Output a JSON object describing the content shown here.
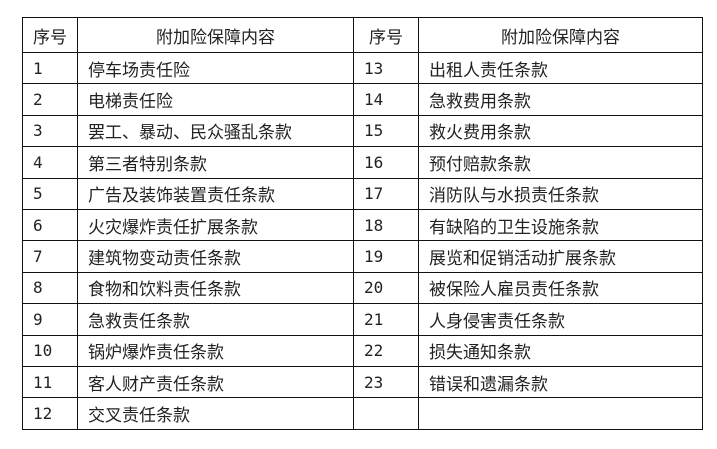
{
  "headers": {
    "no": "序号",
    "content": "附加险保障内容"
  },
  "left": [
    {
      "no": "1",
      "content": "停车场责任险"
    },
    {
      "no": "2",
      "content": "电梯责任险"
    },
    {
      "no": "3",
      "content": "罢工、暴动、民众骚乱条款"
    },
    {
      "no": "4",
      "content": "第三者特别条款"
    },
    {
      "no": "5",
      "content": "广告及装饰装置责任条款"
    },
    {
      "no": "6",
      "content": "火灾爆炸责任扩展条款"
    },
    {
      "no": "7",
      "content": "建筑物变动责任条款"
    },
    {
      "no": "8",
      "content": "食物和饮料责任条款"
    },
    {
      "no": "9",
      "content": "急救责任条款"
    },
    {
      "no": "10",
      "content": "锅炉爆炸责任条款"
    },
    {
      "no": "11",
      "content": "客人财产责任条款"
    },
    {
      "no": "12",
      "content": "交叉责任条款"
    }
  ],
  "right": [
    {
      "no": "13",
      "content": "出租人责任条款"
    },
    {
      "no": "14",
      "content": "急救费用条款"
    },
    {
      "no": "15",
      "content": "救火费用条款"
    },
    {
      "no": "16",
      "content": "预付赔款条款"
    },
    {
      "no": "17",
      "content": "消防队与水损责任条款"
    },
    {
      "no": "18",
      "content": "有缺陷的卫生设施条款"
    },
    {
      "no": "19",
      "content": "展览和促销活动扩展条款"
    },
    {
      "no": "20",
      "content": "被保险人雇员责任条款"
    },
    {
      "no": "21",
      "content": "人身侵害责任条款"
    },
    {
      "no": "22",
      "content": "损失通知条款"
    },
    {
      "no": "23",
      "content": "错误和遗漏条款"
    }
  ]
}
